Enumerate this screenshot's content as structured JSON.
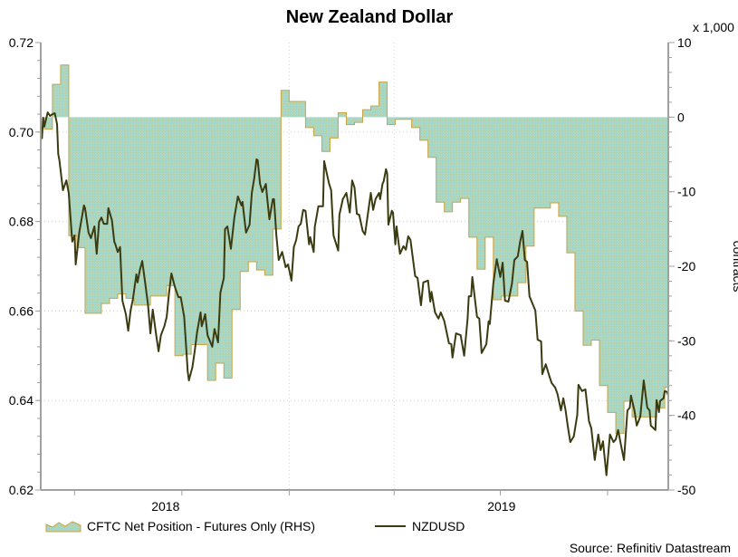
{
  "chart_data": {
    "type": "area+line",
    "title": "New Zealand Dollar",
    "xlabel": "",
    "ylabel_left": "",
    "ylabel_right": "contracts",
    "right_unit": "x 1,000",
    "source": "Source: Refinitiv Datastream",
    "xlim": [
      "2018-06-02",
      "2019-11-22"
    ],
    "x_tick_labels": [
      {
        "label": "2018",
        "at": "2018-09-17"
      },
      {
        "label": "2019",
        "at": "2019-07-02"
      }
    ],
    "x_ticks": [
      "2018-07-01",
      "2018-10-01",
      "2019-01-01",
      "2019-04-01",
      "2019-07-01",
      "2019-10-01"
    ],
    "x_gridlines": [
      "2019-01-01",
      "2019-04-01"
    ],
    "ylim_left": [
      0.62,
      0.72
    ],
    "yticks_left": [
      "0.62",
      "0.64",
      "0.66",
      "0.68",
      "0.70",
      "0.72"
    ],
    "ylim_right": [
      -50,
      10
    ],
    "yticks_right": [
      "-50",
      "-40",
      "-30",
      "-20",
      "-10",
      "0",
      "10"
    ],
    "grid": "horizontal dotted at left ticks",
    "legend_placement": "bottom-left",
    "colors": {
      "area_fill": "#a9d9c2",
      "area_edge": "#c9a443",
      "line": "#3b3b12",
      "grid": "#f0c8a0",
      "axis": "#a0a0a0"
    },
    "series": [
      {
        "name": "CFTC Net Position - Futures Only (RHS)",
        "type": "step-area",
        "axis": "right",
        "dates": [
          "2018-06-05",
          "2018-06-12",
          "2018-06-19",
          "2018-06-26",
          "2018-07-03",
          "2018-07-10",
          "2018-07-17",
          "2018-07-24",
          "2018-07-31",
          "2018-08-07",
          "2018-08-14",
          "2018-08-21",
          "2018-08-28",
          "2018-09-04",
          "2018-09-11",
          "2018-09-18",
          "2018-09-25",
          "2018-10-02",
          "2018-10-09",
          "2018-10-16",
          "2018-10-23",
          "2018-10-30",
          "2018-11-06",
          "2018-11-13",
          "2018-11-20",
          "2018-11-27",
          "2018-12-04",
          "2018-12-11",
          "2018-12-18",
          "2018-12-25",
          "2019-01-01",
          "2019-01-08",
          "2019-01-15",
          "2019-01-22",
          "2019-01-29",
          "2019-02-05",
          "2019-02-12",
          "2019-02-19",
          "2019-02-26",
          "2019-03-05",
          "2019-03-12",
          "2019-03-19",
          "2019-03-26",
          "2019-04-02",
          "2019-04-09",
          "2019-04-16",
          "2019-04-23",
          "2019-04-30",
          "2019-05-07",
          "2019-05-14",
          "2019-05-21",
          "2019-05-28",
          "2019-06-04",
          "2019-06-11",
          "2019-06-18",
          "2019-06-25",
          "2019-07-02",
          "2019-07-09",
          "2019-07-16",
          "2019-07-23",
          "2019-07-30",
          "2019-08-06",
          "2019-08-13",
          "2019-08-20",
          "2019-08-27",
          "2019-09-03",
          "2019-09-10",
          "2019-09-17",
          "2019-09-24",
          "2019-10-01",
          "2019-10-08",
          "2019-10-15",
          "2019-10-22",
          "2019-10-29",
          "2019-11-05",
          "2019-11-12",
          "2019-11-19"
        ],
        "values": [
          -1.6,
          4.4,
          7.0,
          -15.9,
          -17.5,
          -26.3,
          -26.3,
          -25.0,
          -24.3,
          -23.7,
          -24.3,
          -25.2,
          -25.2,
          -24.0,
          -24.0,
          -22.6,
          -32.0,
          -31.8,
          -30.5,
          -30.5,
          -35.3,
          -33.0,
          -35.0,
          -25.8,
          -20.7,
          -19.4,
          -20.5,
          -21.2,
          -15.0,
          3.6,
          2.1,
          2.1,
          -1.4,
          -2.5,
          -4.6,
          -2.8,
          0.6,
          -1.0,
          -0.7,
          1.0,
          1.5,
          4.7,
          -1.0,
          -0.3,
          -0.3,
          -1.4,
          -3.1,
          -5.4,
          -11.4,
          -12.7,
          -11.4,
          -10.9,
          -16.1,
          -20.4,
          -16.1,
          -24.5,
          -24.0,
          -24.0,
          -22.2,
          -17.3,
          -12.2,
          -12.2,
          -11.5,
          -13.3,
          -18.2,
          -26.0,
          -30.6,
          -29.9,
          -36.0,
          -39.6,
          -42.4,
          -38.1,
          -40.2,
          -40.2,
          -40.2,
          -39.0,
          -36.2
        ]
      },
      {
        "name": "NZDUSD",
        "type": "line",
        "axis": "left",
        "dates": [
          "2018-06-03",
          "2018-06-04",
          "2018-06-05",
          "2018-06-08",
          "2018-06-10",
          "2018-06-12",
          "2018-06-14",
          "2018-06-16",
          "2018-06-17",
          "2018-06-18",
          "2018-06-21",
          "2018-06-24",
          "2018-06-26",
          "2018-06-29",
          "2018-07-01",
          "2018-07-02",
          "2018-07-05",
          "2018-07-09",
          "2018-07-10",
          "2018-07-13",
          "2018-07-15",
          "2018-07-18",
          "2018-07-20",
          "2018-07-22",
          "2018-07-24",
          "2018-07-26",
          "2018-07-29",
          "2018-07-30",
          "2018-08-02",
          "2018-08-04",
          "2018-08-05",
          "2018-08-07",
          "2018-08-09",
          "2018-08-11",
          "2018-08-14",
          "2018-08-16",
          "2018-08-18",
          "2018-08-20",
          "2018-08-23",
          "2018-08-24",
          "2018-08-26",
          "2018-08-28",
          "2018-08-31",
          "2018-09-02",
          "2018-09-04",
          "2018-09-06",
          "2018-09-09",
          "2018-09-11",
          "2018-09-13",
          "2018-09-16",
          "2018-09-18",
          "2018-09-20",
          "2018-09-22",
          "2018-09-25",
          "2018-09-28",
          "2018-09-30",
          "2018-10-03",
          "2018-10-06",
          "2018-10-07",
          "2018-10-10",
          "2018-10-12",
          "2018-10-14",
          "2018-10-17",
          "2018-10-18",
          "2018-10-21",
          "2018-10-23",
          "2018-10-27",
          "2018-10-29",
          "2018-11-01",
          "2018-11-03",
          "2018-11-06",
          "2018-11-07",
          "2018-11-09",
          "2018-11-12",
          "2018-11-15",
          "2018-11-18",
          "2018-11-21",
          "2018-11-22",
          "2018-11-25",
          "2018-11-28",
          "2018-11-30",
          "2018-12-02",
          "2018-12-04",
          "2018-12-05",
          "2018-12-07",
          "2018-12-09",
          "2018-12-12",
          "2018-12-13",
          "2018-12-15",
          "2018-12-18",
          "2018-12-19",
          "2018-12-21",
          "2018-12-23",
          "2018-12-26",
          "2018-12-29",
          "2018-12-31",
          "2019-01-03",
          "2019-01-05",
          "2019-01-07",
          "2019-01-09",
          "2019-01-11",
          "2019-01-13",
          "2019-01-15",
          "2019-01-18",
          "2019-01-19",
          "2019-01-22",
          "2019-01-23",
          "2019-01-26",
          "2019-01-30",
          "2019-01-31",
          "2019-02-04",
          "2019-02-06",
          "2019-02-08",
          "2019-02-12",
          "2019-02-13",
          "2019-02-16",
          "2019-02-19",
          "2019-02-22",
          "2019-02-24",
          "2019-02-26",
          "2019-02-28",
          "2019-03-02",
          "2019-03-05",
          "2019-03-07",
          "2019-03-12",
          "2019-03-14",
          "2019-03-16",
          "2019-03-19",
          "2019-03-20",
          "2019-03-22",
          "2019-03-23",
          "2019-03-25",
          "2019-03-26",
          "2019-03-27",
          "2019-03-30",
          "2019-03-31",
          "2019-04-02",
          "2019-04-03",
          "2019-04-06",
          "2019-04-09",
          "2019-04-11",
          "2019-04-13",
          "2019-04-15",
          "2019-04-19",
          "2019-04-21",
          "2019-04-24",
          "2019-04-26",
          "2019-04-30",
          "2019-05-02",
          "2019-05-03",
          "2019-05-06",
          "2019-05-09",
          "2019-05-11",
          "2019-05-14",
          "2019-05-16",
          "2019-05-18",
          "2019-05-20",
          "2019-05-21",
          "2019-05-24",
          "2019-05-28",
          "2019-05-31",
          "2019-06-03",
          "2019-06-04",
          "2019-06-06",
          "2019-06-07",
          "2019-06-11",
          "2019-06-13",
          "2019-06-15",
          "2019-06-19",
          "2019-06-21",
          "2019-06-22",
          "2019-06-25",
          "2019-06-28",
          "2019-07-01",
          "2019-07-03",
          "2019-07-05",
          "2019-07-08",
          "2019-07-11",
          "2019-07-13",
          "2019-07-16",
          "2019-07-18",
          "2019-07-20",
          "2019-07-22",
          "2019-07-24",
          "2019-07-26",
          "2019-07-31",
          "2019-08-02",
          "2019-08-05",
          "2019-08-06",
          "2019-08-09",
          "2019-08-12",
          "2019-08-14",
          "2019-08-17",
          "2019-08-19",
          "2019-08-22",
          "2019-08-24",
          "2019-08-26",
          "2019-08-28",
          "2019-08-30",
          "2019-09-02",
          "2019-09-05",
          "2019-09-06",
          "2019-09-09",
          "2019-09-12",
          "2019-09-15",
          "2019-09-17",
          "2019-09-20",
          "2019-09-23",
          "2019-09-25",
          "2019-09-27",
          "2019-09-30",
          "2019-10-03",
          "2019-10-06",
          "2019-10-08",
          "2019-10-10",
          "2019-10-13",
          "2019-10-15",
          "2019-10-18",
          "2019-10-20",
          "2019-10-21",
          "2019-10-24",
          "2019-10-26",
          "2019-10-29",
          "2019-11-01",
          "2019-11-04",
          "2019-11-06",
          "2019-11-07",
          "2019-11-11",
          "2019-11-12",
          "2019-11-14",
          "2019-11-15",
          "2019-11-18",
          "2019-11-19",
          "2019-11-21",
          "2019-11-22"
        ],
        "values": [
          0.6985,
          0.7032,
          0.7012,
          0.7044,
          0.7036,
          0.704,
          0.7042,
          0.7018,
          0.6951,
          0.6937,
          0.687,
          0.6892,
          0.6864,
          0.6755,
          0.6769,
          0.6704,
          0.6775,
          0.6836,
          0.683,
          0.6775,
          0.6763,
          0.6789,
          0.6728,
          0.6799,
          0.6809,
          0.6795,
          0.6795,
          0.683,
          0.6803,
          0.6755,
          0.6749,
          0.6732,
          0.6743,
          0.6623,
          0.6593,
          0.6556,
          0.6601,
          0.6627,
          0.6682,
          0.6664,
          0.6692,
          0.6712,
          0.6654,
          0.6613,
          0.655,
          0.6603,
          0.6546,
          0.651,
          0.6546,
          0.6566,
          0.6587,
          0.6641,
          0.6684,
          0.6654,
          0.6631,
          0.6631,
          0.6587,
          0.6465,
          0.6445,
          0.6475,
          0.651,
          0.6552,
          0.6597,
          0.6566,
          0.6593,
          0.6546,
          0.652,
          0.656,
          0.653,
          0.6641,
          0.6674,
          0.6783,
          0.6789,
          0.6739,
          0.6809,
          0.6856,
          0.6836,
          0.6844,
          0.6775,
          0.6793,
          0.6864,
          0.6896,
          0.6939,
          0.6937,
          0.6884,
          0.6866,
          0.6884,
          0.6856,
          0.6805,
          0.685,
          0.685,
          0.6769,
          0.6714,
          0.6732,
          0.6698,
          0.6704,
          0.6668,
          0.6743,
          0.6759,
          0.6789,
          0.6795,
          0.6826,
          0.6824,
          0.6749,
          0.6765,
          0.6732,
          0.6789,
          0.6834,
          0.6834,
          0.6935,
          0.6886,
          0.687,
          0.6769,
          0.6735,
          0.6815,
          0.685,
          0.6864,
          0.682,
          0.6892,
          0.6876,
          0.6817,
          0.6815,
          0.6779,
          0.6771,
          0.6864,
          0.6826,
          0.685,
          0.6864,
          0.685,
          0.6884,
          0.689,
          0.6917,
          0.6907,
          0.6793,
          0.6824,
          0.682,
          0.6749,
          0.6789,
          0.6728,
          0.6745,
          0.6737,
          0.6767,
          0.6759,
          0.6678,
          0.6674,
          0.6613,
          0.6664,
          0.6668,
          0.6621,
          0.6643,
          0.6597,
          0.6583,
          0.6597,
          0.6577,
          0.6552,
          0.6528,
          0.6526,
          0.6496,
          0.655,
          0.6546,
          0.65,
          0.6583,
          0.6633,
          0.6633,
          0.6676,
          0.6587,
          0.6583,
          0.6506,
          0.6526,
          0.6577,
          0.6571,
          0.6662,
          0.6716,
          0.6676,
          0.6708,
          0.6623,
          0.6621,
          0.6662,
          0.6714,
          0.6722,
          0.6755,
          0.6779,
          0.6714,
          0.671,
          0.6633,
          0.6601,
          0.6536,
          0.6532,
          0.6459,
          0.6481,
          0.6455,
          0.6439,
          0.6429,
          0.6415,
          0.6378,
          0.6405,
          0.6378,
          0.634,
          0.6307,
          0.632,
          0.6368,
          0.6435,
          0.6421,
          0.6425,
          0.6354,
          0.6338,
          0.6267,
          0.6324,
          0.6289,
          0.6309,
          0.6233,
          0.6324,
          0.6307,
          0.6313,
          0.6334,
          0.6293,
          0.6267,
          0.6378,
          0.6384,
          0.6411,
          0.6378,
          0.6344,
          0.6364,
          0.6445,
          0.6384,
          0.6378,
          0.6344,
          0.6334,
          0.6401,
          0.6374,
          0.6399,
          0.6405,
          0.6421,
          0.6419,
          0.6411
        ]
      }
    ]
  }
}
